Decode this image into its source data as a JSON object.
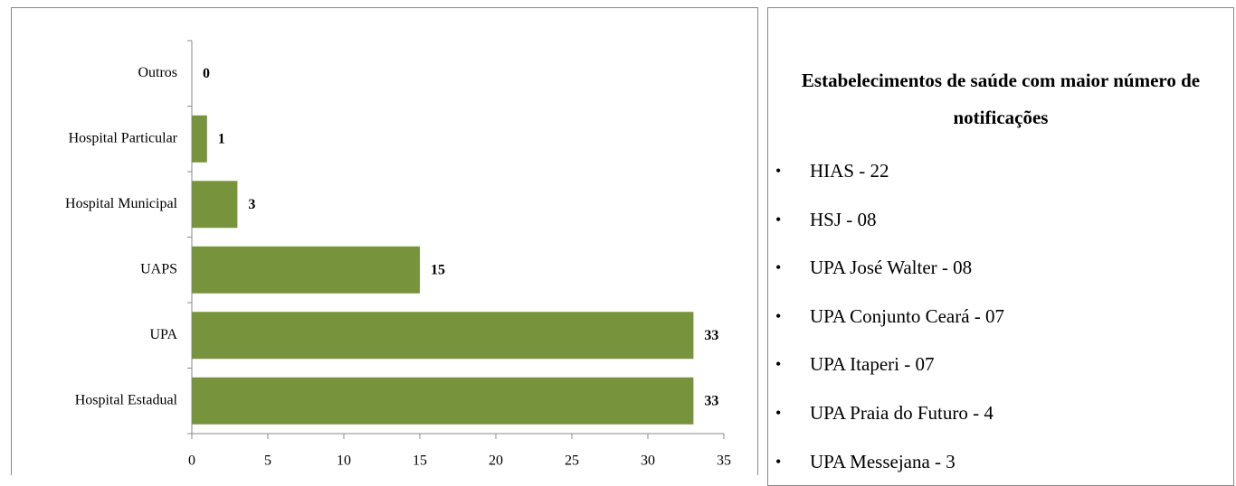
{
  "chart_data": {
    "type": "bar",
    "orientation": "horizontal",
    "categories": [
      "Outros",
      "Hospital Particular",
      "Hospital Municipal",
      "UAPS",
      "UPA",
      "Hospital Estadual"
    ],
    "values": [
      0,
      1,
      3,
      15,
      33,
      33
    ],
    "color": "#77933c",
    "xlim": [
      0,
      35
    ],
    "xticks": [
      0,
      5,
      10,
      15,
      20,
      25,
      30,
      35
    ],
    "grid": false
  },
  "panel": {
    "title": "Estabelecimentos de saúde com maior número de notificações",
    "items": [
      "HIAS -  22",
      "HSJ - 08",
      "UPA José Walter - 08",
      "UPA Conjunto Ceará - 07",
      "UPA Itaperi - 07",
      "UPA Praia do Futuro - 4",
      "UPA Messejana - 3"
    ]
  }
}
